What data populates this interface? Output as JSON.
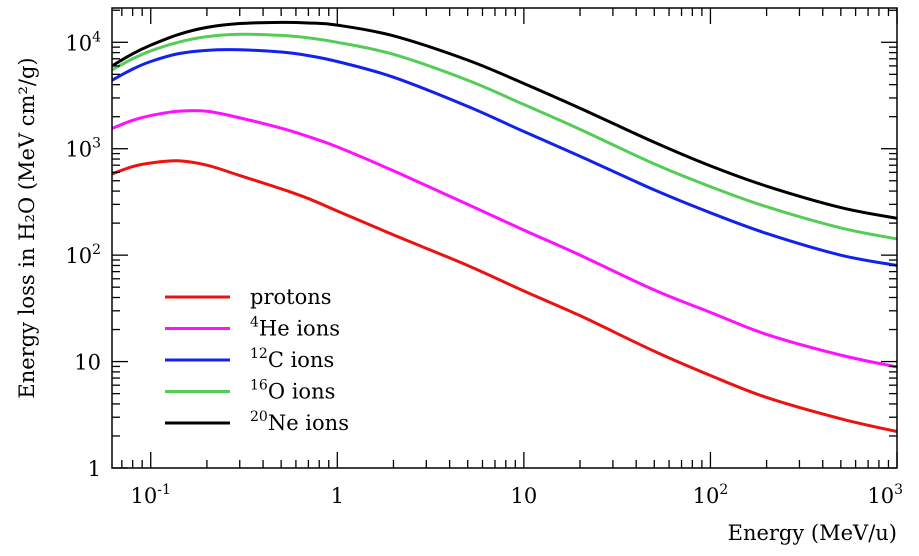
{
  "chart_data": {
    "type": "line",
    "xlabel": "Energy (MeV/u)",
    "ylabel": "Energy loss in H₂O (MeV cm²/g)",
    "xscale": "log",
    "yscale": "log",
    "xlim": [
      0.062,
      1000
    ],
    "ylim": [
      1,
      21000
    ],
    "grid": false,
    "legend_position": "lower-left",
    "x_tick_labels": [
      {
        "value": 0.1,
        "base": "10",
        "exp": "-1"
      },
      {
        "value": 1,
        "base": "1",
        "exp": ""
      },
      {
        "value": 10,
        "base": "10",
        "exp": ""
      },
      {
        "value": 100,
        "base": "10",
        "exp": "2"
      },
      {
        "value": 1000,
        "base": "10",
        "exp": "3"
      }
    ],
    "y_tick_labels": [
      {
        "value": 1,
        "base": "1",
        "exp": ""
      },
      {
        "value": 10,
        "base": "10",
        "exp": ""
      },
      {
        "value": 100,
        "base": "10",
        "exp": "2"
      },
      {
        "value": 1000,
        "base": "10",
        "exp": "3"
      },
      {
        "value": 10000,
        "base": "10",
        "exp": "4"
      }
    ],
    "x": [
      0.062,
      0.08,
      0.1,
      0.14,
      0.2,
      0.3,
      0.5,
      0.7,
      1,
      2,
      5,
      10,
      20,
      50,
      100,
      200,
      500,
      1000
    ],
    "series": [
      {
        "name": "protons",
        "sup": "",
        "label": "protons",
        "color": "#ee1111",
        "values": [
          580,
          680,
          735,
          770,
          700,
          560,
          420,
          340,
          260,
          155,
          80,
          46,
          27,
          12.5,
          7.4,
          4.6,
          2.9,
          2.2
        ]
      },
      {
        "name": "⁴He ions",
        "sup": "4",
        "label": "He ions",
        "color": "#ff11ff",
        "values": [
          1550,
          1850,
          2050,
          2250,
          2250,
          1950,
          1560,
          1300,
          1040,
          620,
          300,
          172,
          100,
          47,
          29,
          18,
          11.5,
          8.9
        ]
      },
      {
        "name": "¹²C ions",
        "sup": "12",
        "label": "C ions",
        "color": "#1122ee",
        "values": [
          4400,
          5600,
          6600,
          7800,
          8400,
          8500,
          8100,
          7500,
          6600,
          4700,
          2500,
          1450,
          850,
          410,
          250,
          160,
          100,
          80
        ]
      },
      {
        "name": "¹⁶O ions",
        "sup": "16",
        "label": "O ions",
        "color": "#55cc55",
        "values": [
          5500,
          7000,
          8300,
          10000,
          11300,
          11900,
          11600,
          11000,
          10000,
          7700,
          4400,
          2600,
          1520,
          720,
          440,
          285,
          180,
          142
        ]
      },
      {
        "name": "²⁰Ne ions",
        "sup": "20",
        "label": "Ne ions",
        "color": "#000000",
        "values": [
          6000,
          7800,
          9400,
          11800,
          13800,
          15000,
          15400,
          15200,
          14500,
          11500,
          6800,
          4100,
          2400,
          1150,
          690,
          445,
          280,
          222
        ]
      }
    ]
  }
}
